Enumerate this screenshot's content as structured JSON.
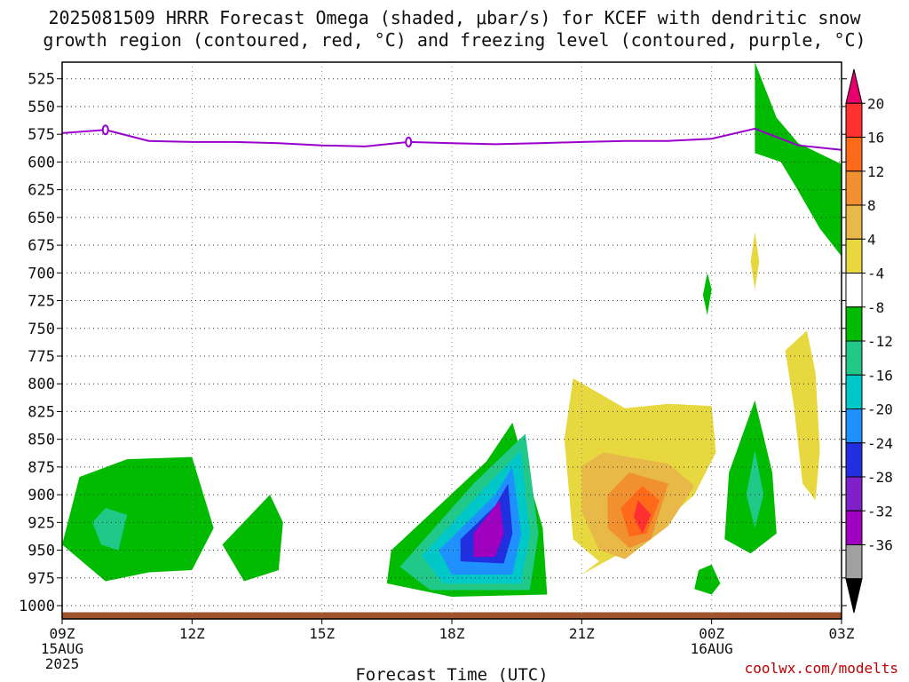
{
  "title_line1": "2025081509 HRRR Forecast Omega (shaded, μbar/s) for KCEF with dendritic snow",
  "title_line2": "growth region (contoured, red, °C) and freezing level (contoured, purple, °C)",
  "credit": "coolwx.com/modelts",
  "chart_data": {
    "type": "time-height contour",
    "xlabel": "Forecast Time (UTC)",
    "x_range_hours": [
      0,
      18
    ],
    "y_range_mb": [
      510,
      1012
    ],
    "y_scale": "inverted",
    "x_ticks": [
      {
        "h": 0,
        "label": "09Z",
        "date": "15AUG",
        "year": "2025"
      },
      {
        "h": 3,
        "label": "12Z"
      },
      {
        "h": 6,
        "label": "15Z"
      },
      {
        "h": 9,
        "label": "18Z"
      },
      {
        "h": 12,
        "label": "21Z"
      },
      {
        "h": 15,
        "label": "00Z",
        "date": "16AUG"
      },
      {
        "h": 18,
        "label": "03Z"
      }
    ],
    "y_ticks": [
      525,
      550,
      575,
      600,
      625,
      650,
      675,
      700,
      725,
      750,
      775,
      800,
      825,
      850,
      875,
      900,
      925,
      950,
      975,
      1000
    ],
    "grid": true,
    "colorbar": {
      "labels": [
        "20",
        "16",
        "12",
        "8",
        "4",
        "-4",
        "-8",
        "-12",
        "-16",
        "-20",
        "-24",
        "-28",
        "-32",
        "-36"
      ],
      "colors": [
        "#e8006e",
        "#ff3030",
        "#ff6a1a",
        "#f09030",
        "#e8b848",
        "#e8d840",
        "#ffffff",
        "#00bb00",
        "#22c888",
        "#00c8c8",
        "#1e90ff",
        "#2030e0",
        "#8020c8",
        "#a000c0",
        "#a0a0a0",
        "#000000"
      ]
    },
    "freezing_level": {
      "label": "0",
      "color": "#9900cc",
      "points": [
        [
          0,
          574
        ],
        [
          1,
          571
        ],
        [
          2,
          581
        ],
        [
          3,
          582
        ],
        [
          4,
          582
        ],
        [
          5,
          583
        ],
        [
          6,
          585
        ],
        [
          7,
          586
        ],
        [
          8,
          582
        ],
        [
          9,
          583
        ],
        [
          10,
          584
        ],
        [
          11,
          583
        ],
        [
          12,
          582
        ],
        [
          13,
          581
        ],
        [
          14,
          581
        ],
        [
          15,
          579
        ],
        [
          16,
          570
        ],
        [
          17,
          585
        ],
        [
          18,
          589
        ]
      ],
      "label_points": [
        [
          1,
          571
        ],
        [
          8,
          582
        ]
      ]
    },
    "omega_regions": [
      {
        "value": -8,
        "color": "#00bb00",
        "polygon": [
          [
            3.0,
            866
          ],
          [
            3.5,
            930
          ],
          [
            3.0,
            968
          ],
          [
            2.0,
            970
          ],
          [
            1.0,
            978
          ],
          [
            0.0,
            945
          ],
          [
            0.4,
            884
          ],
          [
            1.5,
            868
          ]
        ]
      },
      {
        "value": -12,
        "color": "#22c888",
        "polygon": [
          [
            1.0,
            912
          ],
          [
            1.5,
            918
          ],
          [
            1.3,
            950
          ],
          [
            0.9,
            945
          ],
          [
            0.7,
            925
          ]
        ]
      },
      {
        "value": -8,
        "color": "#00bb00",
        "polygon": [
          [
            4.8,
            900
          ],
          [
            5.1,
            925
          ],
          [
            5.0,
            968
          ],
          [
            4.2,
            978
          ],
          [
            3.7,
            945
          ]
        ]
      },
      {
        "value": -8,
        "color": "#00bb00",
        "polygon": [
          [
            10.4,
            835
          ],
          [
            11.1,
            930
          ],
          [
            11.2,
            990
          ],
          [
            9.0,
            992
          ],
          [
            7.5,
            980
          ],
          [
            7.6,
            950
          ],
          [
            9.8,
            870
          ]
        ]
      },
      {
        "value": -12,
        "color": "#22c888",
        "polygon": [
          [
            10.7,
            845
          ],
          [
            11.0,
            935
          ],
          [
            10.8,
            986
          ],
          [
            8.5,
            986
          ],
          [
            7.8,
            965
          ],
          [
            9.5,
            890
          ]
        ]
      },
      {
        "value": -16,
        "color": "#00c8c8",
        "polygon": [
          [
            10.6,
            860
          ],
          [
            10.8,
            935
          ],
          [
            10.6,
            980
          ],
          [
            8.8,
            980
          ],
          [
            8.3,
            955
          ],
          [
            9.8,
            892
          ]
        ]
      },
      {
        "value": -20,
        "color": "#1e90ff",
        "polygon": [
          [
            10.4,
            875
          ],
          [
            10.6,
            935
          ],
          [
            10.4,
            972
          ],
          [
            9.0,
            972
          ],
          [
            8.7,
            950
          ],
          [
            10.0,
            900
          ]
        ]
      },
      {
        "value": -24,
        "color": "#2030e0",
        "polygon": [
          [
            10.3,
            890
          ],
          [
            10.4,
            935
          ],
          [
            10.2,
            962
          ],
          [
            9.2,
            960
          ],
          [
            9.2,
            940
          ],
          [
            10.0,
            910
          ]
        ]
      },
      {
        "value": -28,
        "color": "#a000c0",
        "polygon": [
          [
            10.1,
            905
          ],
          [
            10.2,
            935
          ],
          [
            10.0,
            956
          ],
          [
            9.5,
            956
          ],
          [
            9.5,
            935
          ]
        ]
      },
      {
        "value": -8,
        "color": "#00bb00",
        "polygon": [
          [
            15.0,
            963
          ],
          [
            15.2,
            980
          ],
          [
            15.0,
            990
          ],
          [
            14.6,
            985
          ],
          [
            14.7,
            968
          ]
        ]
      },
      {
        "value": -8,
        "color": "#00bb00",
        "polygon": [
          [
            14.9,
            700
          ],
          [
            15.0,
            715
          ],
          [
            14.9,
            738
          ],
          [
            14.8,
            720
          ]
        ]
      },
      {
        "value": -8,
        "color": "#00bb00",
        "polygon": [
          [
            16.0,
            815
          ],
          [
            16.4,
            880
          ],
          [
            16.5,
            935
          ],
          [
            15.9,
            953
          ],
          [
            15.3,
            940
          ],
          [
            15.4,
            880
          ]
        ]
      },
      {
        "value": -12,
        "color": "#22c888",
        "polygon": [
          [
            16.0,
            860
          ],
          [
            16.2,
            900
          ],
          [
            16.0,
            930
          ],
          [
            15.8,
            900
          ]
        ]
      },
      {
        "value": -8,
        "color": "#00bb00",
        "polygon": [
          [
            16.0,
            510
          ],
          [
            16.5,
            560
          ],
          [
            17.0,
            583
          ],
          [
            18.0,
            602
          ],
          [
            18.0,
            685
          ],
          [
            17.5,
            660
          ],
          [
            17.0,
            626
          ],
          [
            16.6,
            600
          ],
          [
            16.0,
            592
          ],
          [
            16.0,
            568
          ]
        ]
      }
    ],
    "omega_positive_regions": [
      {
        "value": 4,
        "color": "#e8d840",
        "polygon": [
          [
            11.8,
            795
          ],
          [
            13.0,
            822
          ],
          [
            14.0,
            818
          ],
          [
            15.0,
            820
          ],
          [
            15.1,
            862
          ],
          [
            14.6,
            900
          ],
          [
            13.4,
            942
          ],
          [
            12.0,
            972
          ],
          [
            12.4,
            960
          ],
          [
            11.8,
            940
          ],
          [
            11.6,
            850
          ]
        ]
      },
      {
        "value": 8,
        "color": "#e8b848",
        "polygon": [
          [
            12.0,
            874
          ],
          [
            12.5,
            862
          ],
          [
            14.0,
            872
          ],
          [
            14.6,
            892
          ],
          [
            14.0,
            928
          ],
          [
            13.0,
            958
          ],
          [
            12.4,
            950
          ],
          [
            12.0,
            915
          ]
        ]
      },
      {
        "value": 12,
        "color": "#f09030",
        "polygon": [
          [
            12.6,
            900
          ],
          [
            13.1,
            880
          ],
          [
            14.0,
            890
          ],
          [
            13.6,
            940
          ],
          [
            13.1,
            948
          ],
          [
            12.6,
            930
          ]
        ]
      },
      {
        "value": 16,
        "color": "#ff6a1a",
        "polygon": [
          [
            12.9,
            912
          ],
          [
            13.4,
            892
          ],
          [
            13.8,
            905
          ],
          [
            13.5,
            935
          ],
          [
            13.1,
            938
          ]
        ]
      },
      {
        "value": 20,
        "color": "#ff3030",
        "polygon": [
          [
            13.2,
            920
          ],
          [
            13.3,
            905
          ],
          [
            13.6,
            918
          ],
          [
            13.4,
            935
          ]
        ]
      },
      {
        "value": 4,
        "color": "#e8d840",
        "polygon": [
          [
            16.0,
            663
          ],
          [
            16.1,
            690
          ],
          [
            16.0,
            715
          ],
          [
            15.9,
            690
          ]
        ]
      },
      {
        "value": 4,
        "color": "#e8d840",
        "polygon": [
          [
            17.2,
            752
          ],
          [
            17.4,
            790
          ],
          [
            17.5,
            860
          ],
          [
            17.4,
            905
          ],
          [
            17.1,
            890
          ],
          [
            16.9,
            820
          ],
          [
            16.7,
            770
          ]
        ]
      }
    ],
    "ground": {
      "color": "#a0522d",
      "pressure_mb": 1006
    }
  }
}
